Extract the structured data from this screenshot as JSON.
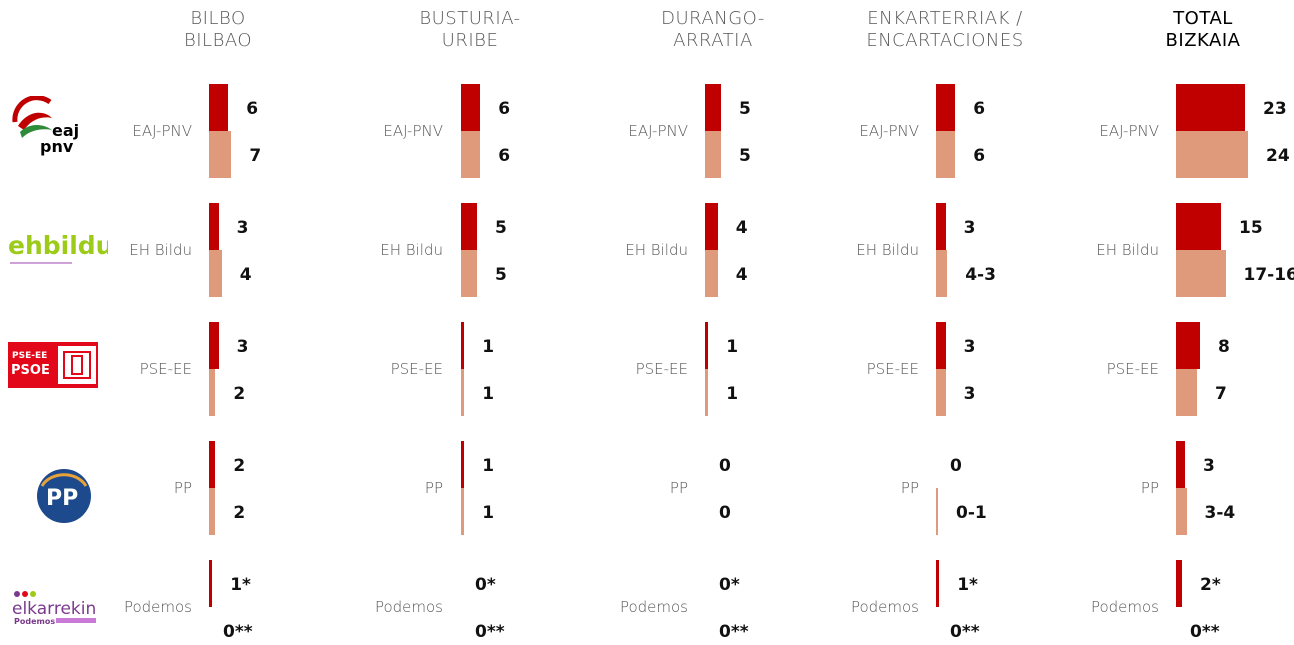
{
  "colors": {
    "bar_2019": "#c00000",
    "bar_2015": "#df9a7c"
  },
  "logos": [
    {
      "name": "eaj-pnv-logo",
      "text": [
        "eaj",
        "pnv"
      ]
    },
    {
      "name": "ehbildu-logo",
      "text": "ehbildu"
    },
    {
      "name": "pse-psoe-logo",
      "text": [
        "PSE-EE",
        "PSOE"
      ]
    },
    {
      "name": "pp-logo",
      "text": "PP"
    },
    {
      "name": "elkarrekin-podemos-logo",
      "text": [
        "elkarrekin",
        "Podemos"
      ]
    }
  ],
  "chart_data": {
    "type": "bar",
    "regions": [
      {
        "name_lines": [
          "BILBO",
          "BILBAO"
        ],
        "total": false
      },
      {
        "name_lines": [
          "BUSTURIA-",
          "URIBE"
        ],
        "total": false
      },
      {
        "name_lines": [
          "DURANGO-",
          "ARRATIA"
        ],
        "total": false
      },
      {
        "name_lines": [
          "ENKARTERRIAK /",
          "ENCARTACIONES"
        ],
        "total": false
      },
      {
        "name_lines": [
          "TOTAL",
          "BIZKAIA"
        ],
        "total": true
      }
    ],
    "parties": [
      "EAJ-PNV",
      "EH Bildu",
      "PSE-EE",
      "PP",
      "Podemos"
    ],
    "values": [
      [
        {
          "top": 6,
          "bottom": 7,
          "top_label": "6",
          "bottom_label": "7"
        },
        {
          "top": 3,
          "bottom": 4,
          "top_label": "3",
          "bottom_label": "4"
        },
        {
          "top": 3,
          "bottom": 2,
          "top_label": "3",
          "bottom_label": "2"
        },
        {
          "top": 2,
          "bottom": 2,
          "top_label": "2",
          "bottom_label": "2"
        },
        {
          "top": 1,
          "bottom": 0,
          "top_label": "1*",
          "bottom_label": "0**"
        }
      ],
      [
        {
          "top": 6,
          "bottom": 6,
          "top_label": "6",
          "bottom_label": "6"
        },
        {
          "top": 5,
          "bottom": 5,
          "top_label": "5",
          "bottom_label": "5"
        },
        {
          "top": 1,
          "bottom": 1,
          "top_label": "1",
          "bottom_label": "1"
        },
        {
          "top": 1,
          "bottom": 1,
          "top_label": "1",
          "bottom_label": "1"
        },
        {
          "top": 0,
          "bottom": 0,
          "top_label": "0*",
          "bottom_label": "0**"
        }
      ],
      [
        {
          "top": 5,
          "bottom": 5,
          "top_label": "5",
          "bottom_label": "5"
        },
        {
          "top": 4,
          "bottom": 4,
          "top_label": "4",
          "bottom_label": "4"
        },
        {
          "top": 1,
          "bottom": 1,
          "top_label": "1",
          "bottom_label": "1"
        },
        {
          "top": 0,
          "bottom": 0,
          "top_label": "0",
          "bottom_label": "0"
        },
        {
          "top": 0,
          "bottom": 0,
          "top_label": "0*",
          "bottom_label": "0**"
        }
      ],
      [
        {
          "top": 6,
          "bottom": 6,
          "top_label": "6",
          "bottom_label": "6"
        },
        {
          "top": 3,
          "bottom": 3.5,
          "top_label": "3",
          "bottom_label": "4-3"
        },
        {
          "top": 3,
          "bottom": 3,
          "top_label": "3",
          "bottom_label": "3"
        },
        {
          "top": 0,
          "bottom": 0.5,
          "top_label": "0",
          "bottom_label": "0-1"
        },
        {
          "top": 1,
          "bottom": 0,
          "top_label": "1*",
          "bottom_label": "0**"
        }
      ],
      [
        {
          "top": 23,
          "bottom": 24,
          "top_label": "23",
          "bottom_label": "24"
        },
        {
          "top": 15,
          "bottom": 16.5,
          "top_label": "15",
          "bottom_label": "17-16"
        },
        {
          "top": 8,
          "bottom": 7,
          "top_label": "8",
          "bottom_label": "7"
        },
        {
          "top": 3,
          "bottom": 3.5,
          "top_label": "3",
          "bottom_label": "3-4"
        },
        {
          "top": 2,
          "bottom": 0,
          "top_label": "2*",
          "bottom_label": "0**"
        }
      ]
    ]
  }
}
